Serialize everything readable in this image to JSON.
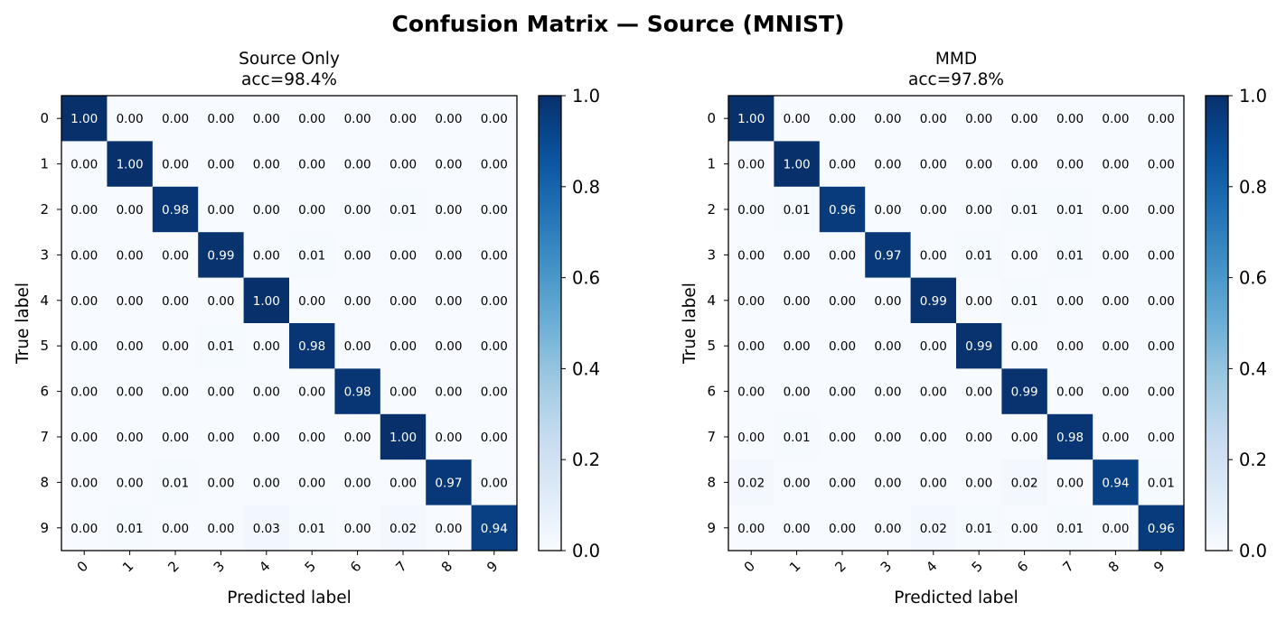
{
  "suptitle": "Confusion Matrix — Source (MNIST)",
  "chart_data": [
    {
      "type": "heatmap",
      "title": "Source Only",
      "subtitle": "acc=98.4%",
      "xlabel": "Predicted label",
      "ylabel": "True label",
      "x_categories": [
        "0",
        "1",
        "2",
        "3",
        "4",
        "5",
        "6",
        "7",
        "8",
        "9"
      ],
      "y_categories": [
        "0",
        "1",
        "2",
        "3",
        "4",
        "5",
        "6",
        "7",
        "8",
        "9"
      ],
      "colormap": "Blues",
      "colorbar": {
        "range": [
          0.0,
          1.0
        ],
        "ticks": [
          "0.0",
          "0.2",
          "0.4",
          "0.6",
          "0.8",
          "1.0"
        ]
      },
      "matrix": [
        [
          1.0,
          0.0,
          0.0,
          0.0,
          0.0,
          0.0,
          0.0,
          0.0,
          0.0,
          0.0
        ],
        [
          0.0,
          1.0,
          0.0,
          0.0,
          0.0,
          0.0,
          0.0,
          0.0,
          0.0,
          0.0
        ],
        [
          0.0,
          0.0,
          0.98,
          0.0,
          0.0,
          0.0,
          0.0,
          0.01,
          0.0,
          0.0
        ],
        [
          0.0,
          0.0,
          0.0,
          0.99,
          0.0,
          0.01,
          0.0,
          0.0,
          0.0,
          0.0
        ],
        [
          0.0,
          0.0,
          0.0,
          0.0,
          1.0,
          0.0,
          0.0,
          0.0,
          0.0,
          0.0
        ],
        [
          0.0,
          0.0,
          0.0,
          0.01,
          0.0,
          0.98,
          0.0,
          0.0,
          0.0,
          0.0
        ],
        [
          0.0,
          0.0,
          0.0,
          0.0,
          0.0,
          0.0,
          0.98,
          0.0,
          0.0,
          0.0
        ],
        [
          0.0,
          0.0,
          0.0,
          0.0,
          0.0,
          0.0,
          0.0,
          1.0,
          0.0,
          0.0
        ],
        [
          0.0,
          0.0,
          0.01,
          0.0,
          0.0,
          0.0,
          0.0,
          0.0,
          0.97,
          0.0
        ],
        [
          0.0,
          0.01,
          0.0,
          0.0,
          0.03,
          0.01,
          0.0,
          0.02,
          0.0,
          0.94
        ]
      ]
    },
    {
      "type": "heatmap",
      "title": "MMD",
      "subtitle": "acc=97.8%",
      "xlabel": "Predicted label",
      "ylabel": "True label",
      "x_categories": [
        "0",
        "1",
        "2",
        "3",
        "4",
        "5",
        "6",
        "7",
        "8",
        "9"
      ],
      "y_categories": [
        "0",
        "1",
        "2",
        "3",
        "4",
        "5",
        "6",
        "7",
        "8",
        "9"
      ],
      "colormap": "Blues",
      "colorbar": {
        "range": [
          0.0,
          1.0
        ],
        "ticks": [
          "0.0",
          "0.2",
          "0.4",
          "0.6",
          "0.8",
          "1.0"
        ]
      },
      "matrix": [
        [
          1.0,
          0.0,
          0.0,
          0.0,
          0.0,
          0.0,
          0.0,
          0.0,
          0.0,
          0.0
        ],
        [
          0.0,
          1.0,
          0.0,
          0.0,
          0.0,
          0.0,
          0.0,
          0.0,
          0.0,
          0.0
        ],
        [
          0.0,
          0.01,
          0.96,
          0.0,
          0.0,
          0.0,
          0.01,
          0.01,
          0.0,
          0.0
        ],
        [
          0.0,
          0.0,
          0.0,
          0.97,
          0.0,
          0.01,
          0.0,
          0.01,
          0.0,
          0.0
        ],
        [
          0.0,
          0.0,
          0.0,
          0.0,
          0.99,
          0.0,
          0.01,
          0.0,
          0.0,
          0.0
        ],
        [
          0.0,
          0.0,
          0.0,
          0.0,
          0.0,
          0.99,
          0.0,
          0.0,
          0.0,
          0.0
        ],
        [
          0.0,
          0.0,
          0.0,
          0.0,
          0.0,
          0.0,
          0.99,
          0.0,
          0.0,
          0.0
        ],
        [
          0.0,
          0.01,
          0.0,
          0.0,
          0.0,
          0.0,
          0.0,
          0.98,
          0.0,
          0.0
        ],
        [
          0.02,
          0.0,
          0.0,
          0.0,
          0.0,
          0.0,
          0.02,
          0.0,
          0.94,
          0.01
        ],
        [
          0.0,
          0.0,
          0.0,
          0.0,
          0.02,
          0.01,
          0.0,
          0.01,
          0.0,
          0.96
        ]
      ]
    }
  ]
}
